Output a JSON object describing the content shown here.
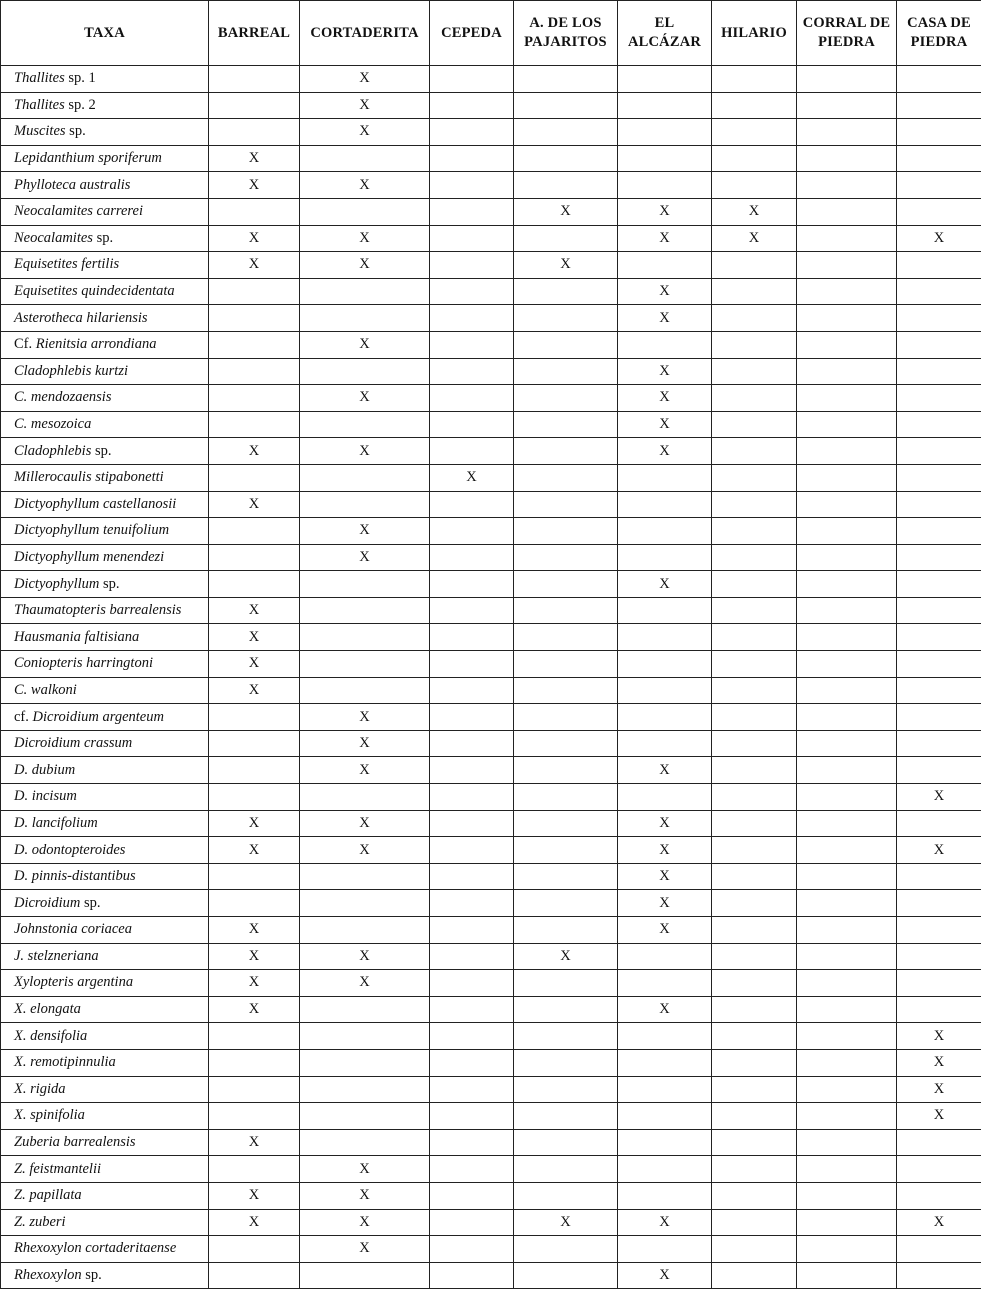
{
  "table": {
    "columns": [
      "TAXA",
      "BARREAL",
      "CORTADERITA",
      "CEPEDA",
      "A. DE LOS PAJARITOS",
      "EL ALCÁZAR",
      "HILARIO",
      "CORRAL DE PIEDRA",
      "CASA DE PIEDRA"
    ],
    "rows": [
      {
        "taxon": {
          "pre": "",
          "it": "Thallites",
          "post": " sp. 1"
        },
        "cells": [
          "",
          "X",
          "",
          "",
          "",
          "",
          "",
          ""
        ]
      },
      {
        "taxon": {
          "pre": "",
          "it": "Thallites",
          "post": " sp. 2"
        },
        "cells": [
          "",
          "X",
          "",
          "",
          "",
          "",
          "",
          ""
        ]
      },
      {
        "taxon": {
          "pre": "",
          "it": "Muscites",
          "post": " sp."
        },
        "cells": [
          "",
          "X",
          "",
          "",
          "",
          "",
          "",
          ""
        ]
      },
      {
        "taxon": {
          "pre": "",
          "it": "Lepidanthium sporiferum",
          "post": ""
        },
        "cells": [
          "X",
          "",
          "",
          "",
          "",
          "",
          "",
          ""
        ]
      },
      {
        "taxon": {
          "pre": "",
          "it": "Phylloteca australis",
          "post": ""
        },
        "cells": [
          "X",
          "X",
          "",
          "",
          "",
          "",
          "",
          ""
        ]
      },
      {
        "taxon": {
          "pre": "",
          "it": "Neocalamites carrerei",
          "post": ""
        },
        "cells": [
          "",
          "",
          "",
          "X",
          "X",
          "X",
          "",
          ""
        ]
      },
      {
        "taxon": {
          "pre": "",
          "it": "Neocalamites",
          "post": " sp."
        },
        "cells": [
          "X",
          "X",
          "",
          "",
          "X",
          "X",
          "",
          "X"
        ]
      },
      {
        "taxon": {
          "pre": "",
          "it": "Equisetites fertilis",
          "post": ""
        },
        "cells": [
          "X",
          "X",
          "",
          "X",
          "",
          "",
          "",
          ""
        ]
      },
      {
        "taxon": {
          "pre": "",
          "it": "Equisetites quindecidentata",
          "post": ""
        },
        "cells": [
          "",
          "",
          "",
          "",
          "X",
          "",
          "",
          ""
        ]
      },
      {
        "taxon": {
          "pre": "",
          "it": "Asterotheca hilariensis",
          "post": ""
        },
        "cells": [
          "",
          "",
          "",
          "",
          "X",
          "",
          "",
          ""
        ]
      },
      {
        "taxon": {
          "pre": "Cf. ",
          "it": "Rienitsia arrondiana",
          "post": ""
        },
        "cells": [
          "",
          "X",
          "",
          "",
          "",
          "",
          "",
          ""
        ]
      },
      {
        "taxon": {
          "pre": "",
          "it": "Cladophlebis kurtzi",
          "post": ""
        },
        "cells": [
          "",
          "",
          "",
          "",
          "X",
          "",
          "",
          ""
        ]
      },
      {
        "taxon": {
          "pre": "",
          "it": "C. mendozaensis",
          "post": ""
        },
        "cells": [
          "",
          "X",
          "",
          "",
          "X",
          "",
          "",
          ""
        ]
      },
      {
        "taxon": {
          "pre": "",
          "it": "C. mesozoica",
          "post": ""
        },
        "cells": [
          "",
          "",
          "",
          "",
          "X",
          "",
          "",
          ""
        ]
      },
      {
        "taxon": {
          "pre": "",
          "it": "Cladophlebis",
          "post": " sp."
        },
        "cells": [
          "X",
          "X",
          "",
          "",
          "X",
          "",
          "",
          ""
        ]
      },
      {
        "taxon": {
          "pre": "",
          "it": "Millerocaulis stipabonetti",
          "post": ""
        },
        "cells": [
          "",
          "",
          "X",
          "",
          "",
          "",
          "",
          ""
        ]
      },
      {
        "taxon": {
          "pre": "",
          "it": "Dictyophyllum castellanosii",
          "post": ""
        },
        "cells": [
          "X",
          "",
          "",
          "",
          "",
          "",
          "",
          ""
        ]
      },
      {
        "taxon": {
          "pre": "",
          "it": "Dictyophyllum tenuifolium",
          "post": ""
        },
        "cells": [
          "",
          "X",
          "",
          "",
          "",
          "",
          "",
          ""
        ]
      },
      {
        "taxon": {
          "pre": "",
          "it": "Dictyophyllum menendezi",
          "post": ""
        },
        "cells": [
          "",
          "X",
          "",
          "",
          "",
          "",
          "",
          ""
        ]
      },
      {
        "taxon": {
          "pre": "",
          "it": "Dictyophyllum",
          "post": " sp."
        },
        "cells": [
          "",
          "",
          "",
          "",
          "X",
          "",
          "",
          ""
        ]
      },
      {
        "taxon": {
          "pre": "",
          "it": "Thaumatopteris barrealensis",
          "post": ""
        },
        "cells": [
          "X",
          "",
          "",
          "",
          "",
          "",
          "",
          ""
        ]
      },
      {
        "taxon": {
          "pre": "",
          "it": "Hausmania faltisiana",
          "post": ""
        },
        "cells": [
          "X",
          "",
          "",
          "",
          "",
          "",
          "",
          ""
        ]
      },
      {
        "taxon": {
          "pre": "",
          "it": "Coniopteris harringtoni",
          "post": ""
        },
        "cells": [
          "X",
          "",
          "",
          "",
          "",
          "",
          "",
          ""
        ]
      },
      {
        "taxon": {
          "pre": "",
          "it": "C. walkoni",
          "post": ""
        },
        "cells": [
          "X",
          "",
          "",
          "",
          "",
          "",
          "",
          ""
        ]
      },
      {
        "taxon": {
          "pre": "cf. ",
          "it": "Dicroidium argenteum",
          "post": ""
        },
        "cells": [
          "",
          "X",
          "",
          "",
          "",
          "",
          "",
          ""
        ]
      },
      {
        "taxon": {
          "pre": "",
          "it": "Dicroidium crassum",
          "post": ""
        },
        "cells": [
          "",
          "X",
          "",
          "",
          "",
          "",
          "",
          ""
        ]
      },
      {
        "taxon": {
          "pre": "",
          "it": "D. dubium",
          "post": ""
        },
        "cells": [
          "",
          "X",
          "",
          "",
          "X",
          "",
          "",
          ""
        ]
      },
      {
        "taxon": {
          "pre": "",
          "it": "D. incisum",
          "post": ""
        },
        "cells": [
          "",
          "",
          "",
          "",
          "",
          "",
          "",
          "X"
        ]
      },
      {
        "taxon": {
          "pre": "",
          "it": "D. lancifolium",
          "post": ""
        },
        "cells": [
          "X",
          "X",
          "",
          "",
          "X",
          "",
          "",
          ""
        ]
      },
      {
        "taxon": {
          "pre": "",
          "it": "D. odontopteroides",
          "post": ""
        },
        "cells": [
          "X",
          "X",
          "",
          "",
          "X",
          "",
          "",
          "X"
        ]
      },
      {
        "taxon": {
          "pre": "",
          "it": "D. pinnis-distantibus",
          "post": ""
        },
        "cells": [
          "",
          "",
          "",
          "",
          "X",
          "",
          "",
          ""
        ]
      },
      {
        "taxon": {
          "pre": "",
          "it": "Dicroidium",
          "post": " sp."
        },
        "cells": [
          "",
          "",
          "",
          "",
          "X",
          "",
          "",
          ""
        ]
      },
      {
        "taxon": {
          "pre": "",
          "it": "Johnstonia coriacea",
          "post": ""
        },
        "cells": [
          "X",
          "",
          "",
          "",
          "X",
          "",
          "",
          ""
        ]
      },
      {
        "taxon": {
          "pre": "",
          "it": "J. stelzneriana",
          "post": ""
        },
        "cells": [
          "X",
          "X",
          "",
          "X",
          "",
          "",
          "",
          ""
        ]
      },
      {
        "taxon": {
          "pre": "",
          "it": "Xylopteris argentina",
          "post": ""
        },
        "cells": [
          "X",
          "X",
          "",
          "",
          "",
          "",
          "",
          ""
        ]
      },
      {
        "taxon": {
          "pre": "",
          "it": "X. elongata",
          "post": ""
        },
        "cells": [
          "X",
          "",
          "",
          "",
          "X",
          "",
          "",
          ""
        ]
      },
      {
        "taxon": {
          "pre": "",
          "it": "X. densifolia",
          "post": ""
        },
        "cells": [
          "",
          "",
          "",
          "",
          "",
          "",
          "",
          "X"
        ]
      },
      {
        "taxon": {
          "pre": "",
          "it": "X. remotipinnulia",
          "post": ""
        },
        "cells": [
          "",
          "",
          "",
          "",
          "",
          "",
          "",
          "X"
        ]
      },
      {
        "taxon": {
          "pre": "",
          "it": "X. rigida",
          "post": ""
        },
        "cells": [
          "",
          "",
          "",
          "",
          "",
          "",
          "",
          "X"
        ]
      },
      {
        "taxon": {
          "pre": "",
          "it": "X. spinifolia",
          "post": ""
        },
        "cells": [
          "",
          "",
          "",
          "",
          "",
          "",
          "",
          "X"
        ]
      },
      {
        "taxon": {
          "pre": "",
          "it": "Zuberia barrealensis",
          "post": ""
        },
        "cells": [
          "X",
          "",
          "",
          "",
          "",
          "",
          "",
          ""
        ]
      },
      {
        "taxon": {
          "pre": "",
          "it": "Z. feistmantelii",
          "post": ""
        },
        "cells": [
          "",
          "X",
          "",
          "",
          "",
          "",
          "",
          ""
        ]
      },
      {
        "taxon": {
          "pre": "",
          "it": "Z. papillata",
          "post": ""
        },
        "cells": [
          "X",
          "X",
          "",
          "",
          "",
          "",
          "",
          ""
        ]
      },
      {
        "taxon": {
          "pre": "",
          "it": "Z. zuberi",
          "post": ""
        },
        "cells": [
          "X",
          "X",
          "",
          "X",
          "X",
          "",
          "",
          "X"
        ]
      },
      {
        "taxon": {
          "pre": "",
          "it": "Rhexoxylon cortaderitaense",
          "post": ""
        },
        "cells": [
          "",
          "X",
          "",
          "",
          "",
          "",
          "",
          ""
        ]
      },
      {
        "taxon": {
          "pre": "",
          "it": "Rhexoxylon",
          "post": " sp."
        },
        "cells": [
          "",
          "",
          "",
          "",
          "X",
          "",
          "",
          ""
        ]
      }
    ]
  }
}
